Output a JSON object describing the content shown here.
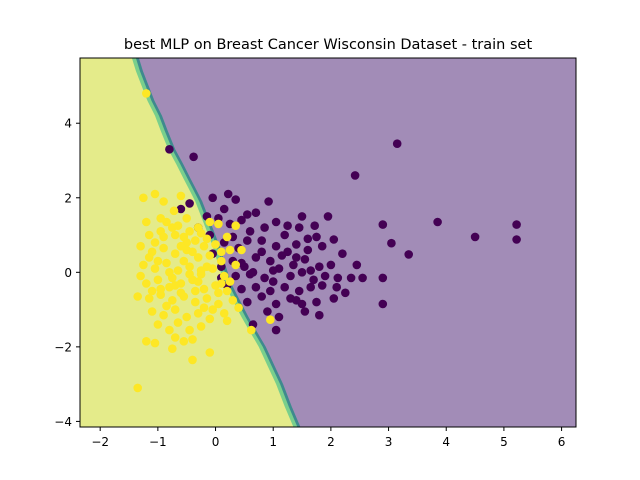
{
  "chart_data": {
    "type": "scatter",
    "title": "best MLP on Breast Cancer Wisconsin Dataset - train set",
    "xlabel": "",
    "ylabel": "",
    "xlim": [
      -2.35,
      6.25
    ],
    "ylim": [
      -4.15,
      5.75
    ],
    "xticks": [
      -2,
      -1,
      0,
      1,
      2,
      3,
      4,
      5,
      6
    ],
    "yticks": [
      -4,
      -2,
      0,
      2,
      4
    ],
    "grid": false,
    "legend": "none",
    "colors": {
      "class_purple_point": "#440154",
      "class_yellow_point": "#fde725",
      "region_purple": "#a28cb7",
      "region_yellow": "#e4eb8a",
      "boundary_teal": "#3e8a8e",
      "boundary_green": "#79cf8c"
    },
    "decision_boundary": [
      [
        -1.45,
        5.75
      ],
      [
        -1.38,
        5.4
      ],
      [
        -1.28,
        5.0
      ],
      [
        -1.18,
        4.6
      ],
      [
        -1.05,
        4.2
      ],
      [
        -0.95,
        3.8
      ],
      [
        -0.82,
        3.3
      ],
      [
        -0.68,
        2.9
      ],
      [
        -0.55,
        2.5
      ],
      [
        -0.45,
        2.2
      ],
      [
        -0.35,
        1.9
      ],
      [
        -0.25,
        1.5
      ],
      [
        -0.15,
        1.1
      ],
      [
        -0.05,
        0.7
      ],
      [
        0.05,
        0.2
      ],
      [
        0.15,
        -0.3
      ],
      [
        0.3,
        -0.75
      ],
      [
        0.45,
        -1.2
      ],
      [
        0.6,
        -1.6
      ],
      [
        0.75,
        -2.0
      ],
      [
        0.9,
        -2.5
      ],
      [
        1.05,
        -3.0
      ],
      [
        1.2,
        -3.6
      ],
      [
        1.35,
        -4.15
      ]
    ],
    "series": [
      {
        "points": [
          [
            -0.8,
            3.3
          ],
          [
            -0.38,
            3.1
          ],
          [
            3.15,
            3.45
          ],
          [
            2.42,
            2.6
          ],
          [
            -0.45,
            1.85
          ],
          [
            0.22,
            2.1
          ],
          [
            0.35,
            1.95
          ],
          [
            0.92,
            1.9
          ],
          [
            -0.15,
            1.5
          ],
          [
            0.05,
            1.45
          ],
          [
            0.45,
            1.4
          ],
          [
            0.7,
            1.6
          ],
          [
            1.05,
            1.35
          ],
          [
            1.5,
            1.5
          ],
          [
            1.72,
            1.25
          ],
          [
            1.95,
            1.5
          ],
          [
            2.9,
            1.28
          ],
          [
            3.85,
            1.35
          ],
          [
            5.22,
            1.28
          ],
          [
            -0.6,
            1.7
          ],
          [
            0.25,
            1.3
          ],
          [
            0.6,
            1.1
          ],
          [
            0.85,
            1.2
          ],
          [
            1.2,
            1.0
          ],
          [
            1.45,
            1.2
          ],
          [
            1.75,
            0.95
          ],
          [
            2.05,
            0.88
          ],
          [
            3.05,
            0.78
          ],
          [
            4.5,
            0.95
          ],
          [
            5.22,
            0.88
          ],
          [
            3.35,
            0.48
          ],
          [
            -0.1,
            1.0
          ],
          [
            0.15,
            0.8
          ],
          [
            0.4,
            0.65
          ],
          [
            0.55,
            0.85
          ],
          [
            0.8,
            0.55
          ],
          [
            1.05,
            0.7
          ],
          [
            1.25,
            0.55
          ],
          [
            1.4,
            0.75
          ],
          [
            1.6,
            0.6
          ],
          [
            1.85,
            0.7
          ],
          [
            0.3,
            0.3
          ],
          [
            0.5,
            0.15
          ],
          [
            0.7,
            0.4
          ],
          [
            0.95,
            0.3
          ],
          [
            1.1,
            0.1
          ],
          [
            1.35,
            0.2
          ],
          [
            1.55,
            0.35
          ],
          [
            1.8,
            0.15
          ],
          [
            2.0,
            0.2
          ],
          [
            0.35,
            -0.1
          ],
          [
            0.6,
            -0.05
          ],
          [
            0.85,
            -0.15
          ],
          [
            1.0,
            0.05
          ],
          [
            1.3,
            -0.1
          ],
          [
            1.5,
            0.0
          ],
          [
            1.7,
            -0.2
          ],
          [
            1.9,
            -0.1
          ],
          [
            2.12,
            -0.15
          ],
          [
            2.35,
            -0.15
          ],
          [
            2.55,
            -0.15
          ],
          [
            2.9,
            -0.15
          ],
          [
            0.45,
            -0.45
          ],
          [
            0.7,
            -0.4
          ],
          [
            0.95,
            -0.5
          ],
          [
            1.2,
            -0.4
          ],
          [
            1.45,
            -0.5
          ],
          [
            1.65,
            -0.4
          ],
          [
            1.85,
            -0.35
          ],
          [
            2.1,
            -0.4
          ],
          [
            0.55,
            -0.8
          ],
          [
            0.8,
            -0.65
          ],
          [
            1.05,
            -0.85
          ],
          [
            1.3,
            -0.7
          ],
          [
            1.5,
            -0.85
          ],
          [
            1.75,
            -0.8
          ],
          [
            2.05,
            -0.7
          ],
          [
            2.25,
            -0.55
          ],
          [
            0.9,
            -1.05
          ],
          [
            1.1,
            -1.2
          ],
          [
            1.4,
            -0.75
          ],
          [
            1.55,
            -1.05
          ],
          [
            1.8,
            -1.15
          ],
          [
            2.9,
            -0.85
          ],
          [
            0.65,
            -1.4
          ],
          [
            1.05,
            -1.55
          ],
          [
            -0.05,
            0.5
          ],
          [
            0.1,
            0.15
          ],
          [
            0.2,
            -0.35
          ],
          [
            0.3,
            0.95
          ],
          [
            0.45,
            0.25
          ],
          [
            0.55,
            1.55
          ],
          [
            0.8,
            0.85
          ],
          [
            1.15,
            0.45
          ],
          [
            1.25,
            1.25
          ],
          [
            1.6,
            0.9
          ],
          [
            0.15,
            1.7
          ],
          [
            0.1,
            -0.15
          ],
          [
            -0.3,
            1.2
          ],
          [
            -0.05,
            2.0
          ],
          [
            0.65,
            0.0
          ],
          [
            1.0,
            -0.25
          ],
          [
            1.4,
            0.4
          ],
          [
            1.65,
            0.05
          ],
          [
            2.2,
            0.5
          ],
          [
            2.45,
            0.2
          ]
        ]
      },
      {
        "points": [
          [
            -1.2,
            4.8
          ],
          [
            -1.25,
            2.0
          ],
          [
            -1.05,
            2.1
          ],
          [
            -0.9,
            1.9
          ],
          [
            -0.72,
            1.65
          ],
          [
            -0.5,
            1.45
          ],
          [
            -0.3,
            1.2
          ],
          [
            -0.1,
            1.35
          ],
          [
            0.05,
            1.3
          ],
          [
            -1.2,
            1.35
          ],
          [
            -1.15,
            1.0
          ],
          [
            -0.95,
            1.1
          ],
          [
            -0.75,
            1.2
          ],
          [
            -0.55,
            0.95
          ],
          [
            -0.35,
            0.85
          ],
          [
            -0.15,
            0.9
          ],
          [
            0.0,
            0.75
          ],
          [
            0.25,
            0.6
          ],
          [
            -1.3,
            0.7
          ],
          [
            -1.1,
            0.55
          ],
          [
            -0.9,
            0.65
          ],
          [
            -0.7,
            0.5
          ],
          [
            -0.5,
            0.6
          ],
          [
            -0.3,
            0.4
          ],
          [
            -0.1,
            0.45
          ],
          [
            0.1,
            0.3
          ],
          [
            0.35,
            0.2
          ],
          [
            -1.25,
            0.2
          ],
          [
            -1.05,
            0.1
          ],
          [
            -0.85,
            0.25
          ],
          [
            -0.65,
            0.05
          ],
          [
            -0.45,
            0.15
          ],
          [
            -0.25,
            -0.05
          ],
          [
            -0.05,
            0.1
          ],
          [
            0.15,
            -0.1
          ],
          [
            -1.2,
            -0.3
          ],
          [
            -1.0,
            -0.2
          ],
          [
            -0.8,
            -0.4
          ],
          [
            -0.6,
            -0.3
          ],
          [
            -0.4,
            -0.2
          ],
          [
            -0.2,
            -0.45
          ],
          [
            0.0,
            -0.35
          ],
          [
            0.2,
            -0.5
          ],
          [
            -1.35,
            -0.65
          ],
          [
            -1.15,
            -0.7
          ],
          [
            -0.95,
            -0.6
          ],
          [
            -0.75,
            -0.75
          ],
          [
            -0.55,
            -0.65
          ],
          [
            -0.35,
            -0.8
          ],
          [
            -0.15,
            -0.7
          ],
          [
            0.05,
            -0.85
          ],
          [
            0.3,
            -0.75
          ],
          [
            -1.1,
            -1.05
          ],
          [
            -0.9,
            -1.15
          ],
          [
            -0.7,
            -1.0
          ],
          [
            -0.5,
            -1.2
          ],
          [
            -0.3,
            -1.1
          ],
          [
            -0.1,
            -1.25
          ],
          [
            0.15,
            -1.1
          ],
          [
            -1.2,
            -1.85
          ],
          [
            -1.05,
            -1.9
          ],
          [
            -0.7,
            -1.75
          ],
          [
            -0.4,
            -1.8
          ],
          [
            -0.1,
            -2.15
          ],
          [
            -0.4,
            -2.35
          ],
          [
            -0.75,
            -2.05
          ],
          [
            -1.35,
            -3.1
          ],
          [
            0.95,
            -1.27
          ],
          [
            0.62,
            -1.55
          ],
          [
            0.45,
            0.6
          ],
          [
            -0.6,
            2.05
          ],
          [
            -0.95,
            1.45
          ],
          [
            0.2,
            0.95
          ],
          [
            -1.0,
            0.3
          ],
          [
            -0.75,
            -0.15
          ],
          [
            -0.55,
            0.3
          ],
          [
            -0.35,
            -0.5
          ],
          [
            -0.15,
            0.15
          ],
          [
            0.05,
            -0.55
          ],
          [
            -0.85,
            -0.9
          ],
          [
            -0.65,
            -1.35
          ],
          [
            -0.45,
            -1.55
          ],
          [
            -0.25,
            -1.45
          ],
          [
            -1.0,
            -1.4
          ],
          [
            -0.8,
            -1.55
          ],
          [
            -0.6,
            -0.55
          ],
          [
            -0.4,
            0.55
          ],
          [
            -0.2,
            0.7
          ],
          [
            0.1,
            0.55
          ],
          [
            -0.9,
            0.95
          ],
          [
            -0.7,
            1.0
          ],
          [
            -0.5,
            0.8
          ],
          [
            -1.15,
            0.4
          ],
          [
            -1.3,
            -0.1
          ],
          [
            -0.95,
            -0.45
          ],
          [
            -0.25,
            0.05
          ],
          [
            0.25,
            -0.25
          ],
          [
            0.4,
            -0.95
          ],
          [
            -0.05,
            -1.0
          ],
          [
            -0.55,
            -1.85
          ],
          [
            -0.85,
            1.35
          ],
          [
            -0.65,
            1.25
          ],
          [
            -0.45,
            1.1
          ],
          [
            -0.25,
            1.05
          ],
          [
            0.35,
            1.25
          ],
          [
            -1.05,
            0.8
          ],
          [
            -0.6,
            0.7
          ],
          [
            -0.8,
            0.0
          ],
          [
            -0.45,
            -0.05
          ],
          [
            -1.1,
            -0.5
          ],
          [
            -0.7,
            -0.35
          ],
          [
            -0.3,
            -0.25
          ],
          [
            0.1,
            -0.3
          ],
          [
            -0.2,
            -0.95
          ],
          [
            0.2,
            -1.3
          ]
        ]
      }
    ]
  }
}
